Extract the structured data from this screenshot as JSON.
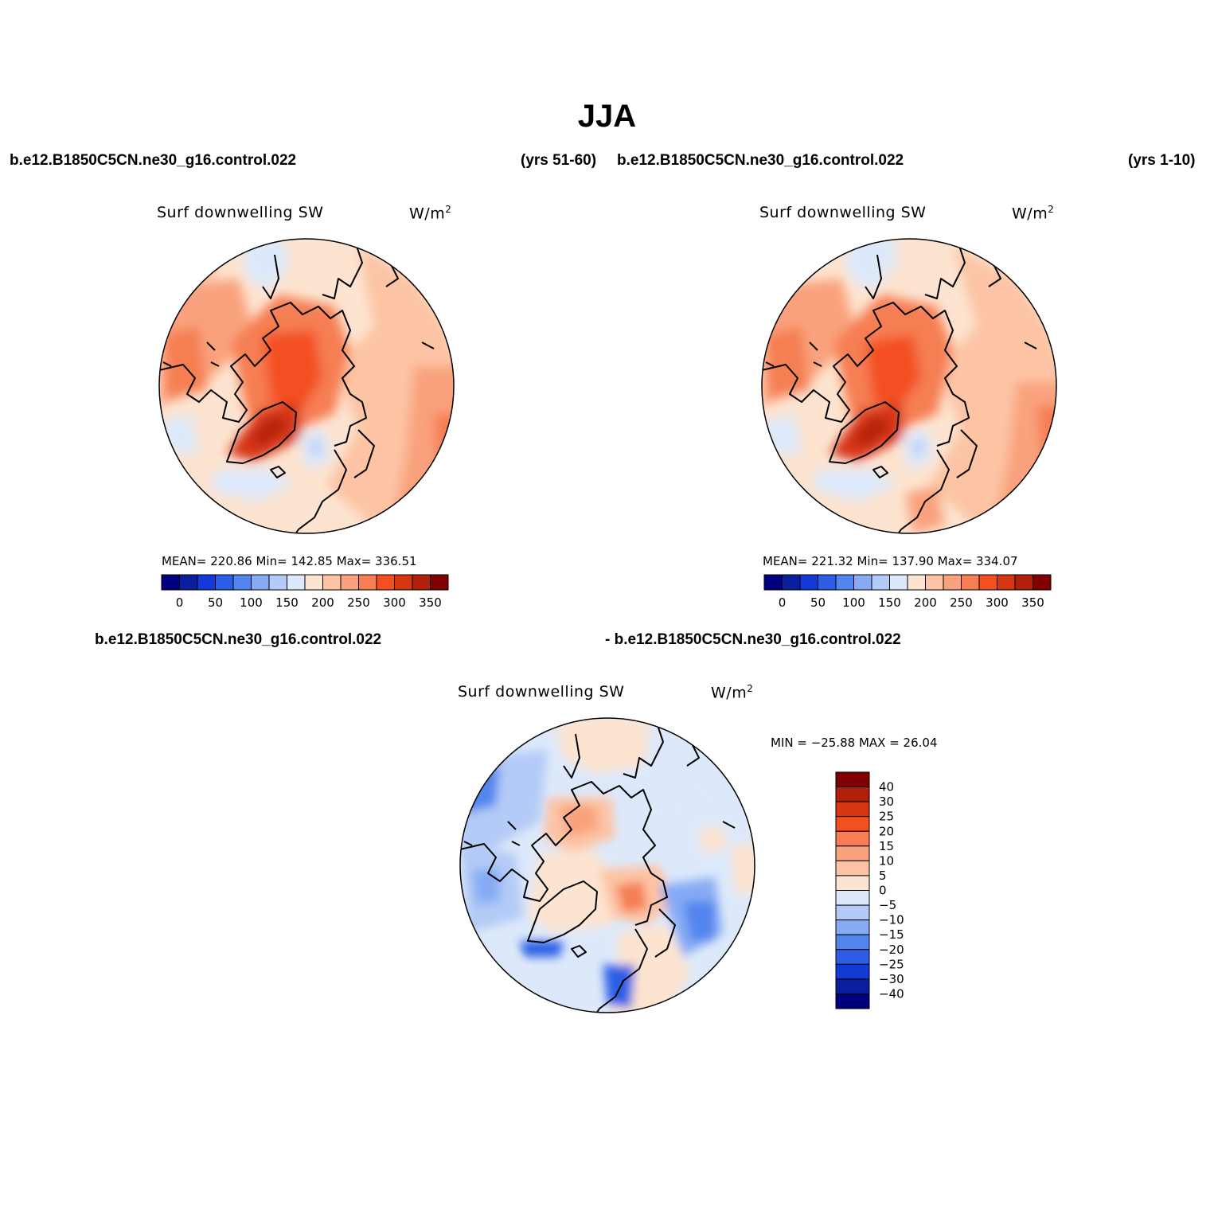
{
  "title": "JJA",
  "panels": {
    "top_left": {
      "case": "b.e12.B1850C5CN.ne30_g16.control.022",
      "years": "(yrs 51-60)",
      "variable": "Surf downwelling SW",
      "units": "W/m",
      "units_sup": "2",
      "stats": "MEAN= 220.86   Min= 142.85   Max= 336.51"
    },
    "top_right": {
      "case": "b.e12.B1850C5CN.ne30_g16.control.022",
      "years": "(yrs 1-10)",
      "variable": "Surf downwelling SW",
      "units": "W/m",
      "units_sup": "2",
      "stats": "MEAN= 221.32   Min= 137.90   Max= 334.07"
    },
    "bottom": {
      "case_left": "b.e12.B1850C5CN.ne30_g16.control.022",
      "case_right": "- b.e12.B1850C5CN.ne30_g16.control.022",
      "variable": "Surf downwelling SW",
      "units": "W/m",
      "units_sup": "2",
      "stats": "MIN = −25.88 MAX =  26.04"
    }
  },
  "colorbar_abs": {
    "colors": [
      "#00007f",
      "#0b1f9e",
      "#1339d6",
      "#2c5fe6",
      "#5385ee",
      "#86abf4",
      "#b4cbf7",
      "#dde9fb",
      "#fde4d0",
      "#fcc4a4",
      "#f9a27d",
      "#f67e52",
      "#f35022",
      "#d63612",
      "#b1200a",
      "#810000"
    ],
    "ticks": [
      "0",
      "50",
      "100",
      "150",
      "200",
      "250",
      "300",
      "350"
    ]
  },
  "colorbar_diff": {
    "colors": [
      "#810000",
      "#b1200a",
      "#d63612",
      "#f35022",
      "#f67e52",
      "#f9a27d",
      "#fcc4a4",
      "#fde4d0",
      "#dde9fb",
      "#b4cbf7",
      "#86abf4",
      "#5385ee",
      "#2c5fe6",
      "#1339d6",
      "#0b1f9e",
      "#00007f"
    ],
    "ticks": [
      "40",
      "30",
      "25",
      "20",
      "15",
      "10",
      "5",
      "0",
      "−5",
      "−10",
      "−15",
      "−20",
      "−25",
      "−30",
      "−40"
    ]
  }
}
